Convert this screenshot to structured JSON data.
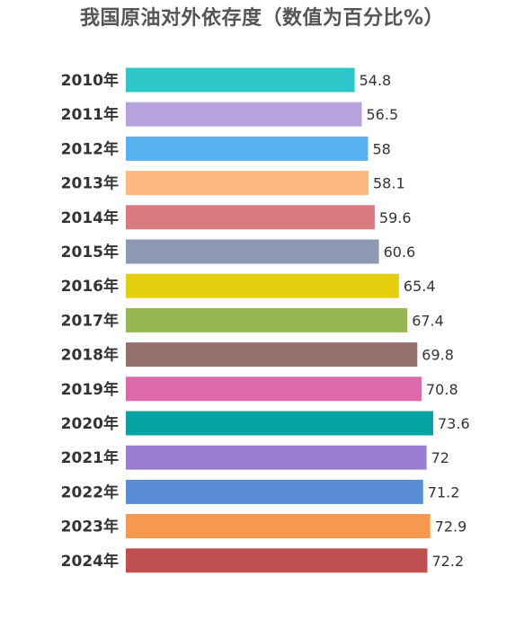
{
  "chart_data": {
    "type": "bar",
    "orientation": "horizontal",
    "title": "我国原油对外依存度（数值为百分比%）",
    "xlabel": "",
    "ylabel": "",
    "categories": [
      "2010年",
      "2011年",
      "2012年",
      "2013年",
      "2014年",
      "2015年",
      "2016年",
      "2017年",
      "2018年",
      "2019年",
      "2020年",
      "2021年",
      "2022年",
      "2023年",
      "2024年"
    ],
    "values": [
      54.8,
      56.5,
      58,
      58.1,
      59.6,
      60.6,
      65.4,
      67.4,
      69.8,
      70.8,
      73.6,
      72,
      71.2,
      72.9,
      72.2
    ],
    "value_labels": [
      "54.8",
      "56.5",
      "58",
      "58.1",
      "59.6",
      "60.6",
      "65.4",
      "67.4",
      "69.8",
      "70.8",
      "73.6",
      "72",
      "71.2",
      "72.9",
      "72.2"
    ],
    "colors": [
      "#2ec7c9",
      "#b6a2de",
      "#5ab1ef",
      "#ffb980",
      "#d87a80",
      "#8d98b3",
      "#e5cf0d",
      "#97b552",
      "#95706d",
      "#dc69aa",
      "#07a2a4",
      "#9a7fd1",
      "#588dd5",
      "#f5994e",
      "#c05050"
    ],
    "xlim": [
      0,
      73.6
    ],
    "grid": false,
    "legend": "none"
  }
}
